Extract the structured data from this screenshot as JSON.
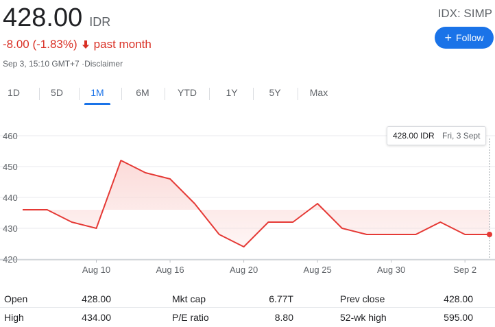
{
  "quote": {
    "price": "428.00",
    "currency": "IDR",
    "change": "-8.00 (-1.83%)",
    "period": "past month",
    "timestamp": "Sep 3, 15:10 GMT+7",
    "disclaimer": "Disclaimer",
    "exchange_ticker": "IDX: SIMP"
  },
  "follow_button": {
    "label": "Follow",
    "icon": "plus-icon"
  },
  "tabs": [
    {
      "label": "1D",
      "active": false
    },
    {
      "label": "5D",
      "active": false
    },
    {
      "label": "1M",
      "active": true
    },
    {
      "label": "6M",
      "active": false
    },
    {
      "label": "YTD",
      "active": false
    },
    {
      "label": "1Y",
      "active": false
    },
    {
      "label": "5Y",
      "active": false
    },
    {
      "label": "Max",
      "active": false
    }
  ],
  "tooltip": {
    "price": "428.00 IDR",
    "date": "Fri, 3 Sept"
  },
  "colors": {
    "line": "#e53935",
    "fill": "#fbd9d7",
    "accent": "#1a73e8",
    "negative": "#d93025",
    "grid": "#e8eaed"
  },
  "chart_data": {
    "type": "area",
    "x": [
      "Aug 5",
      "Aug 6",
      "Aug 9",
      "Aug 10",
      "Aug 12",
      "Aug 13",
      "Aug 16",
      "Aug 18",
      "Aug 19",
      "Aug 20",
      "Aug 23",
      "Aug 24",
      "Aug 25",
      "Aug 26",
      "Aug 27",
      "Aug 30",
      "Aug 31",
      "Sep 1",
      "Sep 2",
      "Sep 3"
    ],
    "values": [
      436,
      436,
      432,
      430,
      452,
      448,
      446,
      438,
      428,
      424,
      432,
      432,
      438,
      430,
      428,
      428,
      428,
      432,
      428,
      428
    ],
    "x_ticks": [
      "Aug 10",
      "Aug 16",
      "Aug 20",
      "Aug 25",
      "Aug 30",
      "Sep 2"
    ],
    "y_ticks": [
      "460",
      "450",
      "440",
      "430",
      "420"
    ],
    "ylim": [
      420,
      460
    ],
    "previous_close": 436,
    "grid": true
  },
  "stats": {
    "row1": [
      {
        "label": "Open",
        "value": "428.00"
      },
      {
        "label": "Mkt cap",
        "value": "6.77T"
      },
      {
        "label": "Prev close",
        "value": "428.00"
      }
    ],
    "row2": [
      {
        "label": "High",
        "value": "434.00"
      },
      {
        "label": "P/E ratio",
        "value": "8.80"
      },
      {
        "label": "52-wk high",
        "value": "595.00"
      }
    ]
  }
}
